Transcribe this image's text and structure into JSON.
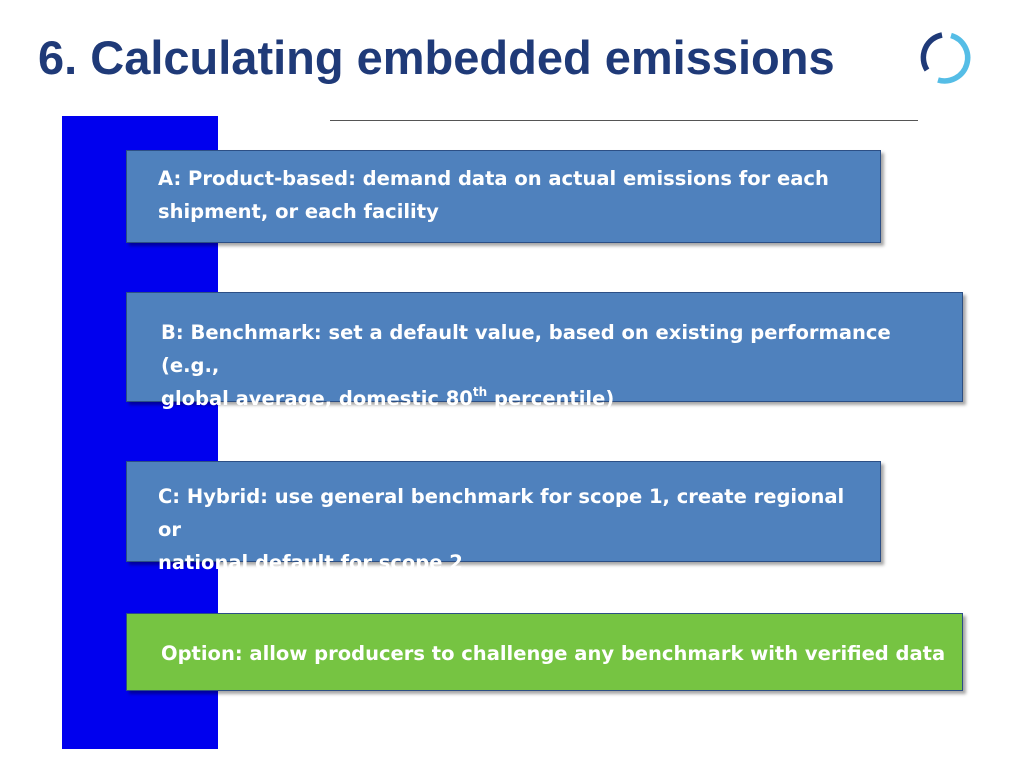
{
  "slide": {
    "title": "6. Calculating embedded emissions",
    "logo_icon": "circular-arc-logo",
    "colors": {
      "title": "#1f3a78",
      "bar": "#0000ee",
      "box_blue": "#4f81bd",
      "box_green": "#76c442",
      "logo_dark": "#1f3a78",
      "logo_light": "#55bde6"
    }
  },
  "options": {
    "a": {
      "line1": "A: Product-based: demand data on actual emissions for each",
      "line2": "shipment, or each facility"
    },
    "b": {
      "line1": "B: Benchmark: set a default value, based on existing performance (e.g.,",
      "line2_pre": "global average, domestic 80",
      "line2_sup": "th",
      "line2_post": " percentile)"
    },
    "c": {
      "line1": "C: Hybrid: use general benchmark for scope 1, create regional or",
      "line2": "national default for scope 2"
    },
    "d": {
      "text": "Option: allow producers to challenge any benchmark with verified data"
    }
  }
}
